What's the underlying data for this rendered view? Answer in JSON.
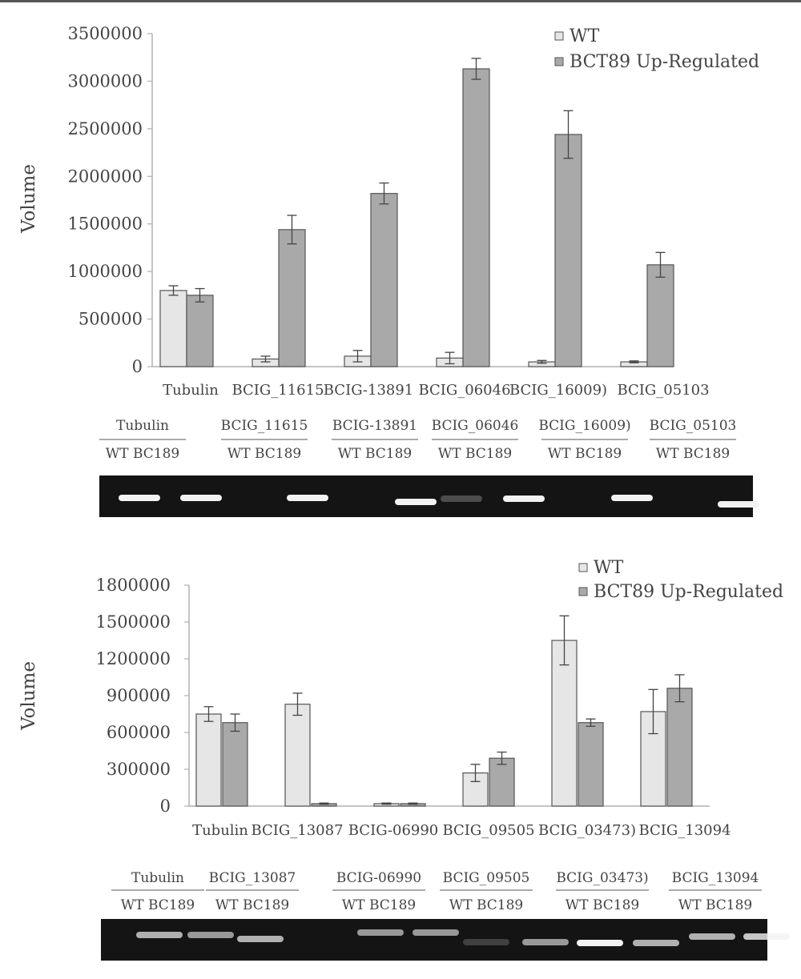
{
  "colors": {
    "wt": "#e6e6e6",
    "bct89": "#a9a9a9",
    "bar_stroke": "#555555",
    "axis": "#b0b0b0",
    "gel_bg": "#141414",
    "band": "#f2f2f2"
  },
  "chart_data": [
    {
      "type": "bar",
      "title": "",
      "xlabel": "",
      "ylabel": "Volume",
      "ylim": [
        0,
        3500000
      ],
      "yticks": [
        "0",
        "500000",
        "1000000",
        "1500000",
        "2000000",
        "2500000",
        "3000000",
        "3500000"
      ],
      "grid": false,
      "legend_position": "top-right",
      "categories": [
        "Tubulin",
        "BCIG_11615",
        "BCIG-13891",
        "BCIG_06046",
        "BCIG_16009)",
        "BCIG_05103"
      ],
      "series": [
        {
          "name": "WT",
          "color": "#e6e6e6",
          "values": [
            800000,
            80000,
            110000,
            90000,
            50000,
            50000
          ],
          "errors": [
            50000,
            30000,
            60000,
            60000,
            15000,
            10000
          ]
        },
        {
          "name": "BCT89 Up-Regulated",
          "color": "#a9a9a9",
          "values": [
            750000,
            1440000,
            1820000,
            3130000,
            2440000,
            1070000
          ],
          "errors": [
            70000,
            150000,
            110000,
            110000,
            250000,
            130000
          ]
        }
      ]
    },
    {
      "type": "bar",
      "title": "",
      "xlabel": "",
      "ylabel": "Volume",
      "ylim": [
        0,
        1800000
      ],
      "yticks": [
        "0",
        "300000",
        "600000",
        "900000",
        "1200000",
        "1500000",
        "1800000"
      ],
      "grid": false,
      "legend_position": "top-right",
      "categories": [
        "Tubulin",
        "BCIG_13087",
        "BCIG-06990",
        "BCIG_09505",
        "BCIG_03473)",
        "BCIG_13094"
      ],
      "series": [
        {
          "name": "WT",
          "color": "#e6e6e6",
          "values": [
            750000,
            830000,
            20000,
            270000,
            1350000,
            770000
          ],
          "errors": [
            60000,
            90000,
            5000,
            70000,
            200000,
            180000
          ]
        },
        {
          "name": "BCT89 Up-Regulated",
          "color": "#a9a9a9",
          "values": [
            680000,
            20000,
            20000,
            390000,
            680000,
            960000
          ],
          "errors": [
            70000,
            5000,
            5000,
            50000,
            30000,
            110000
          ]
        }
      ]
    }
  ],
  "gels": [
    {
      "group_labels": [
        "Tubulin",
        "BCIG_11615",
        "BCIG-13891",
        "BCIG_06046",
        "BCIG_16009)",
        "BCIG_05103"
      ],
      "lane_labels": [
        "WT BC189",
        "WT BC189",
        "WT BC189",
        "WT BC189",
        "WT BC189",
        "WT BC189"
      ],
      "band_intensity": [
        [
          1,
          1
        ],
        [
          0,
          1
        ],
        [
          0,
          1
        ],
        [
          0.25,
          1
        ],
        [
          0,
          1
        ],
        [
          0,
          1
        ]
      ]
    },
    {
      "group_labels": [
        "Tubulin",
        "BCIG_13087",
        "BCIG-06990",
        "BCIG_09505",
        "BCIG_03473)",
        "BCIG_13094"
      ],
      "lane_labels": [
        "WT BC189",
        "WT BC189",
        "WT BC189",
        "WT  BC189",
        "WT BC189",
        "WT BC189"
      ],
      "band_intensity": [
        [
          0.7,
          0.6
        ],
        [
          0.7,
          0
        ],
        [
          0.6,
          0.6
        ],
        [
          0.2,
          0.6
        ],
        [
          1,
          0.7
        ],
        [
          0.7,
          0.8
        ]
      ]
    }
  ]
}
